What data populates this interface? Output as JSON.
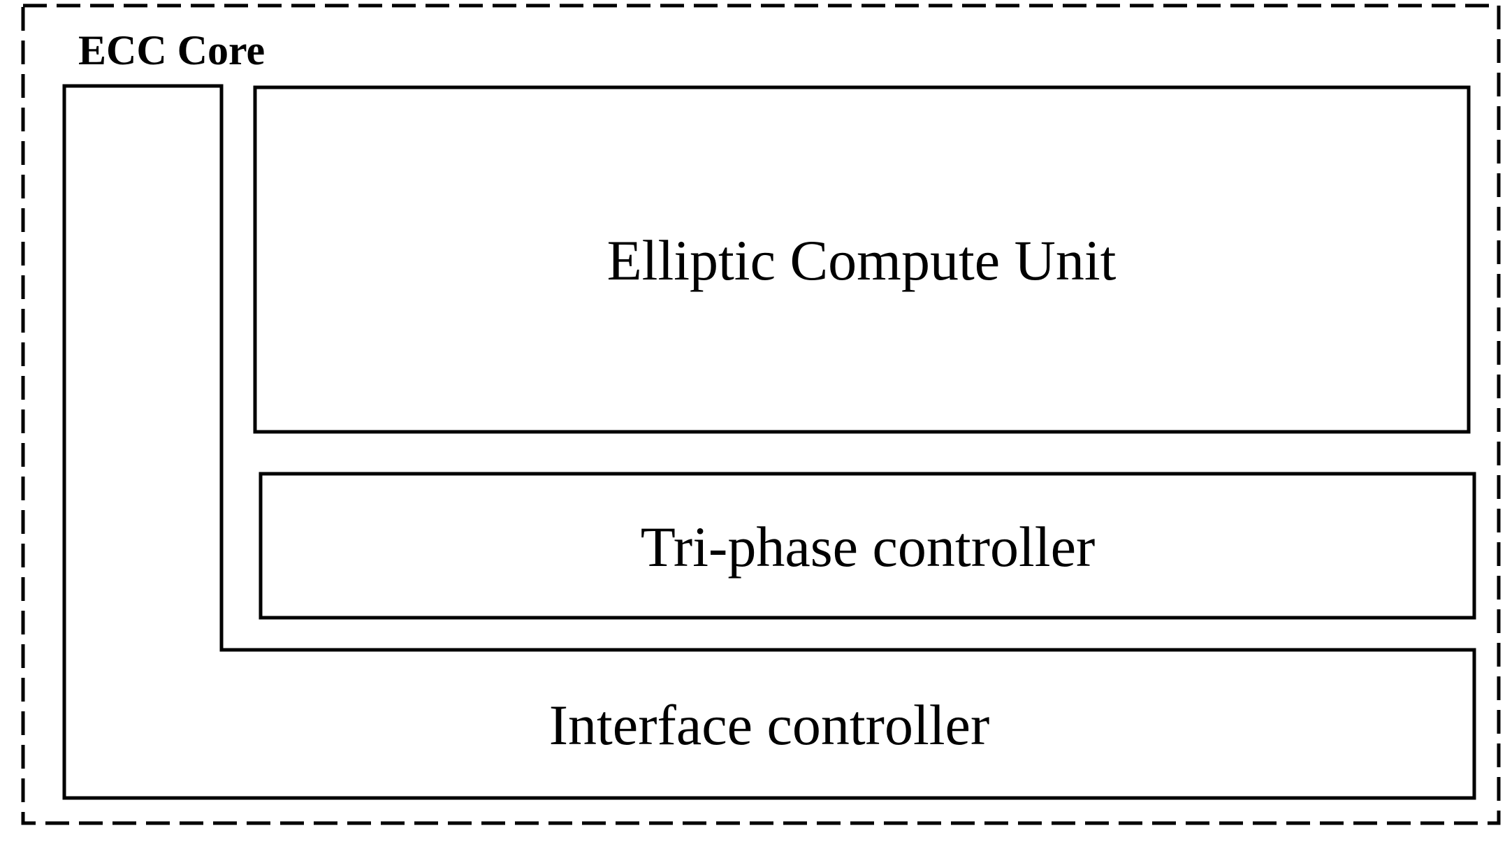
{
  "diagram": {
    "title": "ECC Core",
    "blocks": {
      "elliptic_compute_unit": "Elliptic Compute Unit",
      "tri_phase_controller": "Tri-phase controller",
      "interface_controller": "Interface controller"
    }
  },
  "colors": {
    "stroke": "#000000",
    "background": "#ffffff"
  }
}
